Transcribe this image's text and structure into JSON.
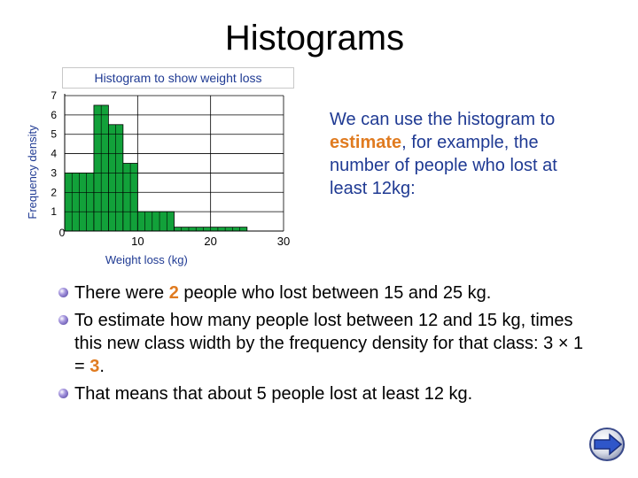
{
  "title": "Histograms",
  "chart_caption": "Histogram to show weight loss",
  "side_text": {
    "part1": "We can use the histogram to ",
    "accent": "estimate",
    "part2": ", for example, the number of people who lost at least 12kg:"
  },
  "bullets": [
    {
      "before": "There were ",
      "accent": "2",
      "after": " people who lost between 15 and 25 kg."
    },
    {
      "before": "To estimate how many people lost between 12 and 15 kg, times this new class width by the frequency density for that class: 3 × 1 = ",
      "accent": "3",
      "after": "."
    },
    {
      "before": "That means that about 5 people lost at least 12 kg.",
      "accent": "",
      "after": ""
    }
  ],
  "nav": {
    "icon": "right-arrow-icon"
  },
  "colors": {
    "bar": "#12a13a",
    "accent": "#e07b20",
    "text_blue": "#1f3a93"
  },
  "chart_data": {
    "type": "bar",
    "title": "Histogram to show weight loss",
    "xlabel": "Weight loss (kg)",
    "ylabel": "Frequency density",
    "xlim": [
      0,
      30
    ],
    "ylim": [
      0,
      7
    ],
    "x_ticks": [
      10,
      20,
      30
    ],
    "y_ticks": [
      1,
      2,
      3,
      4,
      5,
      6,
      7
    ],
    "origin_label": "0",
    "grid": true,
    "bins": [
      {
        "start": 0,
        "end": 4,
        "value": 3
      },
      {
        "start": 4,
        "end": 6,
        "value": 6.5
      },
      {
        "start": 6,
        "end": 8,
        "value": 5.5
      },
      {
        "start": 8,
        "end": 10,
        "value": 3.5
      },
      {
        "start": 10,
        "end": 15,
        "value": 1
      },
      {
        "start": 15,
        "end": 25,
        "value": 0.2
      }
    ]
  }
}
